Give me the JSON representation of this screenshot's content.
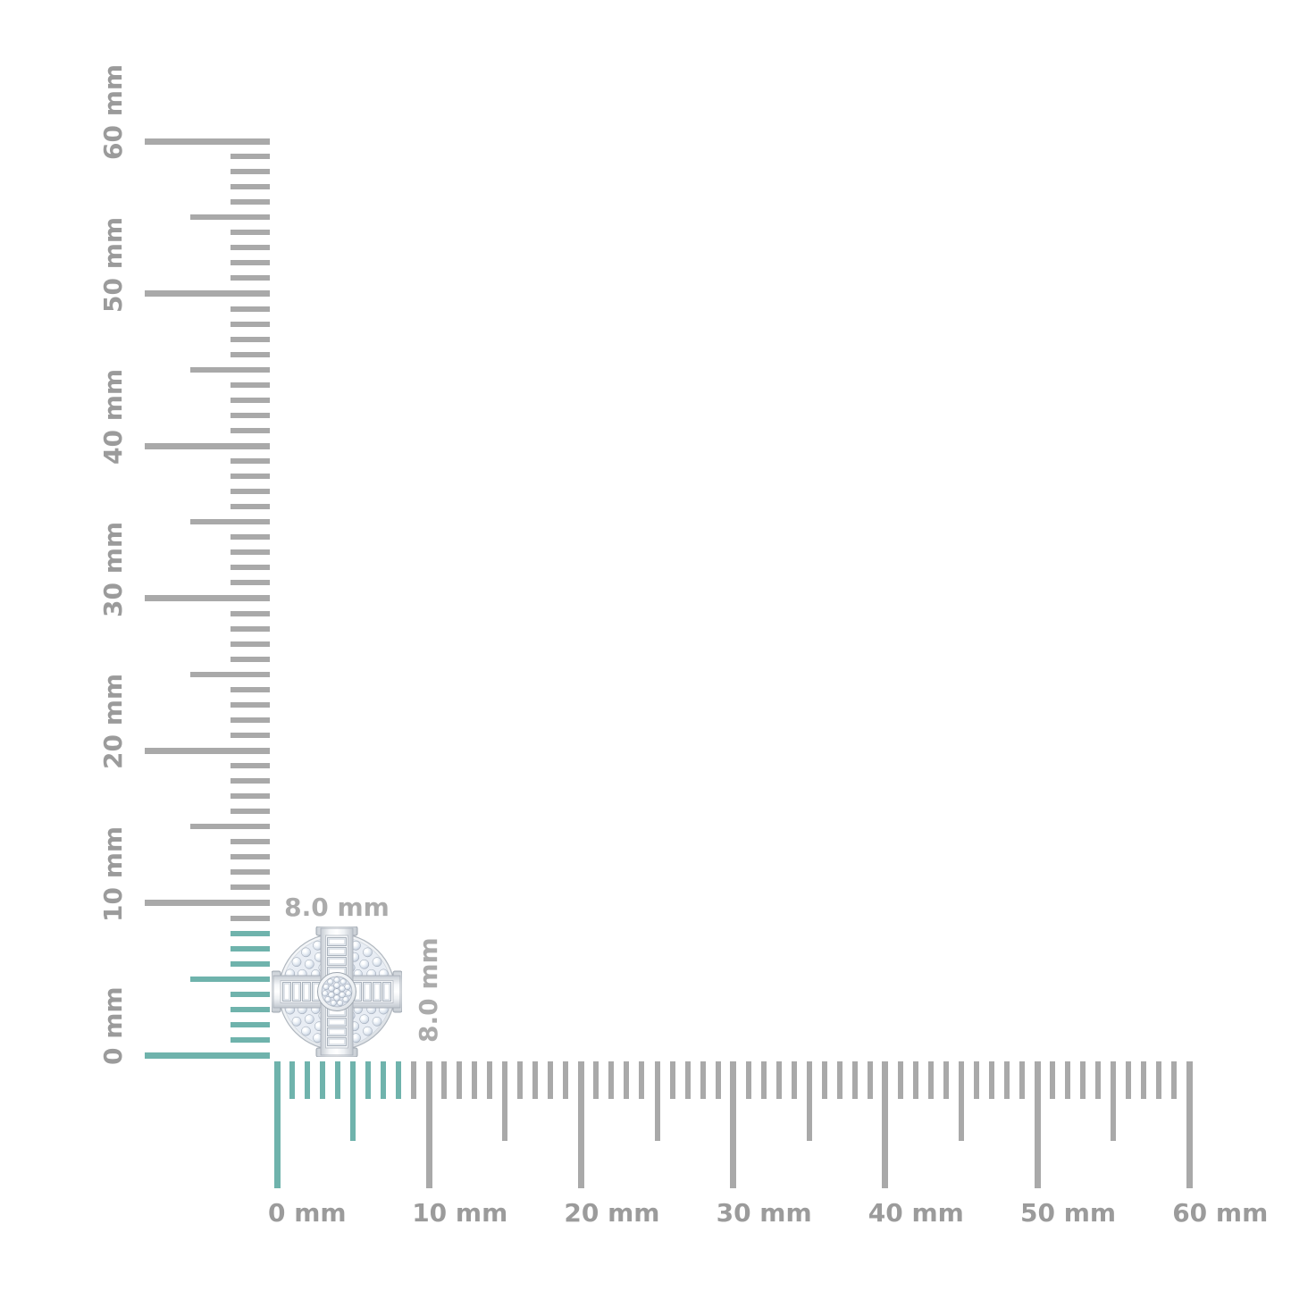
{
  "page": {
    "background": "#ffffff"
  },
  "colors": {
    "tick_gray": "#a9a9a9",
    "tick_highlight_teal": "#6fb3ac",
    "ruler_label_gray": "#9b9b9b",
    "dimension_label_gray": "#ababab"
  },
  "rulers": {
    "vertical": {
      "unit": "mm",
      "min_mm": 0,
      "max_mm": 60,
      "major_step_mm": 10,
      "medium_step_mm": 5,
      "minor_step_mm": 1,
      "highlighted_extent_mm": 8,
      "labels": [
        "0 mm",
        "10 mm",
        "20 mm",
        "30 mm",
        "40 mm",
        "50 mm",
        "60 mm"
      ]
    },
    "horizontal": {
      "unit": "mm",
      "min_mm": 0,
      "max_mm": 60,
      "major_step_mm": 10,
      "medium_step_mm": 5,
      "minor_step_mm": 1,
      "highlighted_extent_mm": 8,
      "labels": [
        "0 mm",
        "10 mm",
        "20 mm",
        "30 mm",
        "40 mm",
        "50 mm",
        "60 mm"
      ]
    }
  },
  "item": {
    "description": "round diamond cluster stud earring with baguette cross channels",
    "width_label": "8.0 mm",
    "height_label": "8.0 mm"
  }
}
